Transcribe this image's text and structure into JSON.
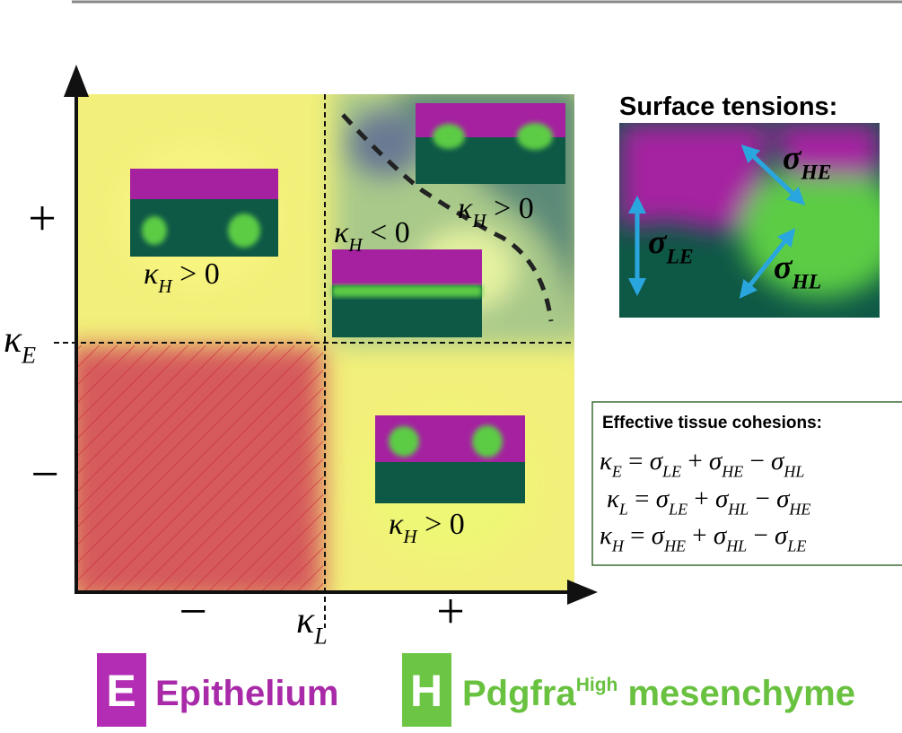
{
  "axes": {
    "y_plus": "+",
    "y_minus": "−",
    "y_label": [
      {
        "s": "κ",
        "sub": "E"
      }
    ],
    "x_minus": "−",
    "x_plus": "+",
    "x_label": [
      {
        "s": "κ",
        "sub": "L"
      }
    ]
  },
  "regions": [
    {
      "label": [
        {
          "s": "κ",
          "sub": "H"
        },
        " > 0"
      ]
    },
    {
      "label": [
        {
          "s": "κ",
          "sub": "H"
        },
        " > 0"
      ]
    },
    {
      "label": [
        {
          "s": "κ",
          "sub": "H"
        },
        " < 0"
      ]
    },
    {
      "label": [
        {
          "s": "κ",
          "sub": "H"
        },
        " > 0"
      ]
    }
  ],
  "surface_tensions": {
    "title": "Surface tensions:",
    "labels": [
      [
        {
          "s": "σ",
          "sub": "HE"
        }
      ],
      [
        {
          "s": "σ",
          "sub": "LE"
        }
      ],
      [
        {
          "s": "σ",
          "sub": "HL"
        }
      ]
    ]
  },
  "cohesions": {
    "title": "Effective tissue cohesions:",
    "equations": [
      [
        {
          "s": "κ",
          "sub": "E"
        },
        " = ",
        {
          "s": "σ",
          "sub": "LE"
        },
        " + ",
        {
          "s": "σ",
          "sub": "HE"
        },
        " − ",
        {
          "s": "σ",
          "sub": "HL"
        }
      ],
      [
        {
          "s": "κ",
          "sub": "L"
        },
        " = ",
        {
          "s": "σ",
          "sub": "LE"
        },
        " + ",
        {
          "s": "σ",
          "sub": "HL"
        },
        " − ",
        {
          "s": "σ",
          "sub": "HE"
        }
      ],
      [
        {
          "s": "κ",
          "sub": "H"
        },
        " = ",
        {
          "s": "σ",
          "sub": "HE"
        },
        " + ",
        {
          "s": "σ",
          "sub": "HL"
        },
        " − ",
        {
          "s": "σ",
          "sub": "LE"
        }
      ]
    ]
  },
  "legend": [
    {
      "letter": "E",
      "label": "Epithelium"
    },
    {
      "letter": "H",
      "label": "Pdgfra",
      "superscript": "High",
      "suffix": " mesenchyme"
    }
  ]
}
